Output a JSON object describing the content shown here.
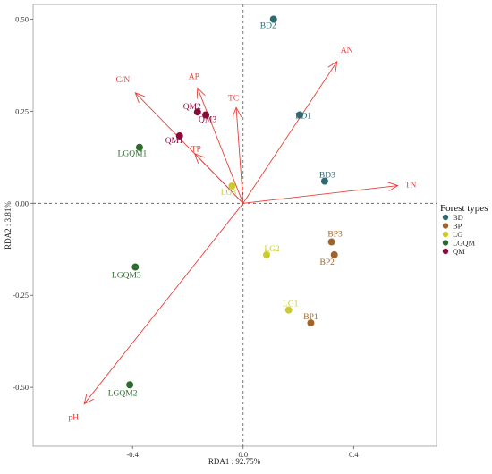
{
  "chart_data": {
    "type": "scatter",
    "title": "",
    "xlabel": "RDA1 : 92.75%",
    "ylabel": "RDA2 : 3.81%",
    "xlim": [
      -0.76,
      0.7
    ],
    "ylim": [
      -0.66,
      0.54
    ],
    "xticks": [
      -0.4,
      0.0,
      0.4
    ],
    "yticks": [
      -0.5,
      -0.25,
      0.0,
      0.25,
      0.5
    ],
    "xtick_labels": [
      "-0.4",
      "0.0",
      "0.4"
    ],
    "ytick_labels": [
      "-0.50",
      "-0.25",
      "0.00",
      "0.25",
      "0.50"
    ],
    "grid": false,
    "reference_lines": "dashed lines at x=0 and y=0",
    "arrow_color": "#e8403a",
    "arrows": [
      {
        "label": "AN",
        "x": 0.34,
        "y": 0.385
      },
      {
        "label": "TN",
        "x": 0.56,
        "y": 0.048
      },
      {
        "label": "C/N",
        "x": -0.39,
        "y": 0.3
      },
      {
        "label": "AP",
        "x": -0.165,
        "y": 0.313
      },
      {
        "label": "TC",
        "x": -0.025,
        "y": 0.26
      },
      {
        "label": "TP",
        "x": -0.175,
        "y": 0.135
      },
      {
        "label": "pH",
        "x": -0.575,
        "y": -0.545
      }
    ],
    "legend": {
      "title": "Forest types",
      "position": "right",
      "items": [
        {
          "name": "BD",
          "color": "#2e6b70"
        },
        {
          "name": "BP",
          "color": "#a0642a"
        },
        {
          "name": "LG",
          "color": "#cccc2e"
        },
        {
          "name": "LGQM",
          "color": "#2e6a2e"
        },
        {
          "name": "QM",
          "color": "#8b0a3a"
        }
      ]
    },
    "points": [
      {
        "label": "BD1",
        "group": "BD",
        "x": 0.205,
        "y": 0.24
      },
      {
        "label": "BD2",
        "group": "BD",
        "x": 0.11,
        "y": 0.5
      },
      {
        "label": "BD3",
        "group": "BD",
        "x": 0.295,
        "y": 0.06
      },
      {
        "label": "BP1",
        "group": "BP",
        "x": 0.245,
        "y": -0.325
      },
      {
        "label": "BP2",
        "group": "BP",
        "x": 0.33,
        "y": -0.14
      },
      {
        "label": "BP3",
        "group": "BP",
        "x": 0.32,
        "y": -0.105
      },
      {
        "label": "LG1",
        "group": "LG",
        "x": 0.165,
        "y": -0.29
      },
      {
        "label": "LG2",
        "group": "LG",
        "x": 0.085,
        "y": -0.14
      },
      {
        "label": "LG3",
        "group": "LG",
        "x": -0.04,
        "y": 0.047
      },
      {
        "label": "LGQM1",
        "group": "LGQM",
        "x": -0.375,
        "y": 0.152
      },
      {
        "label": "LGQM2",
        "group": "LGQM",
        "x": -0.41,
        "y": -0.493
      },
      {
        "label": "LGQM3",
        "group": "LGQM",
        "x": -0.39,
        "y": -0.173
      },
      {
        "label": "QM1",
        "group": "QM",
        "x": -0.23,
        "y": 0.183
      },
      {
        "label": "QM2",
        "group": "QM",
        "x": -0.165,
        "y": 0.248
      },
      {
        "label": "QM3",
        "group": "QM",
        "x": -0.135,
        "y": 0.24
      }
    ]
  }
}
